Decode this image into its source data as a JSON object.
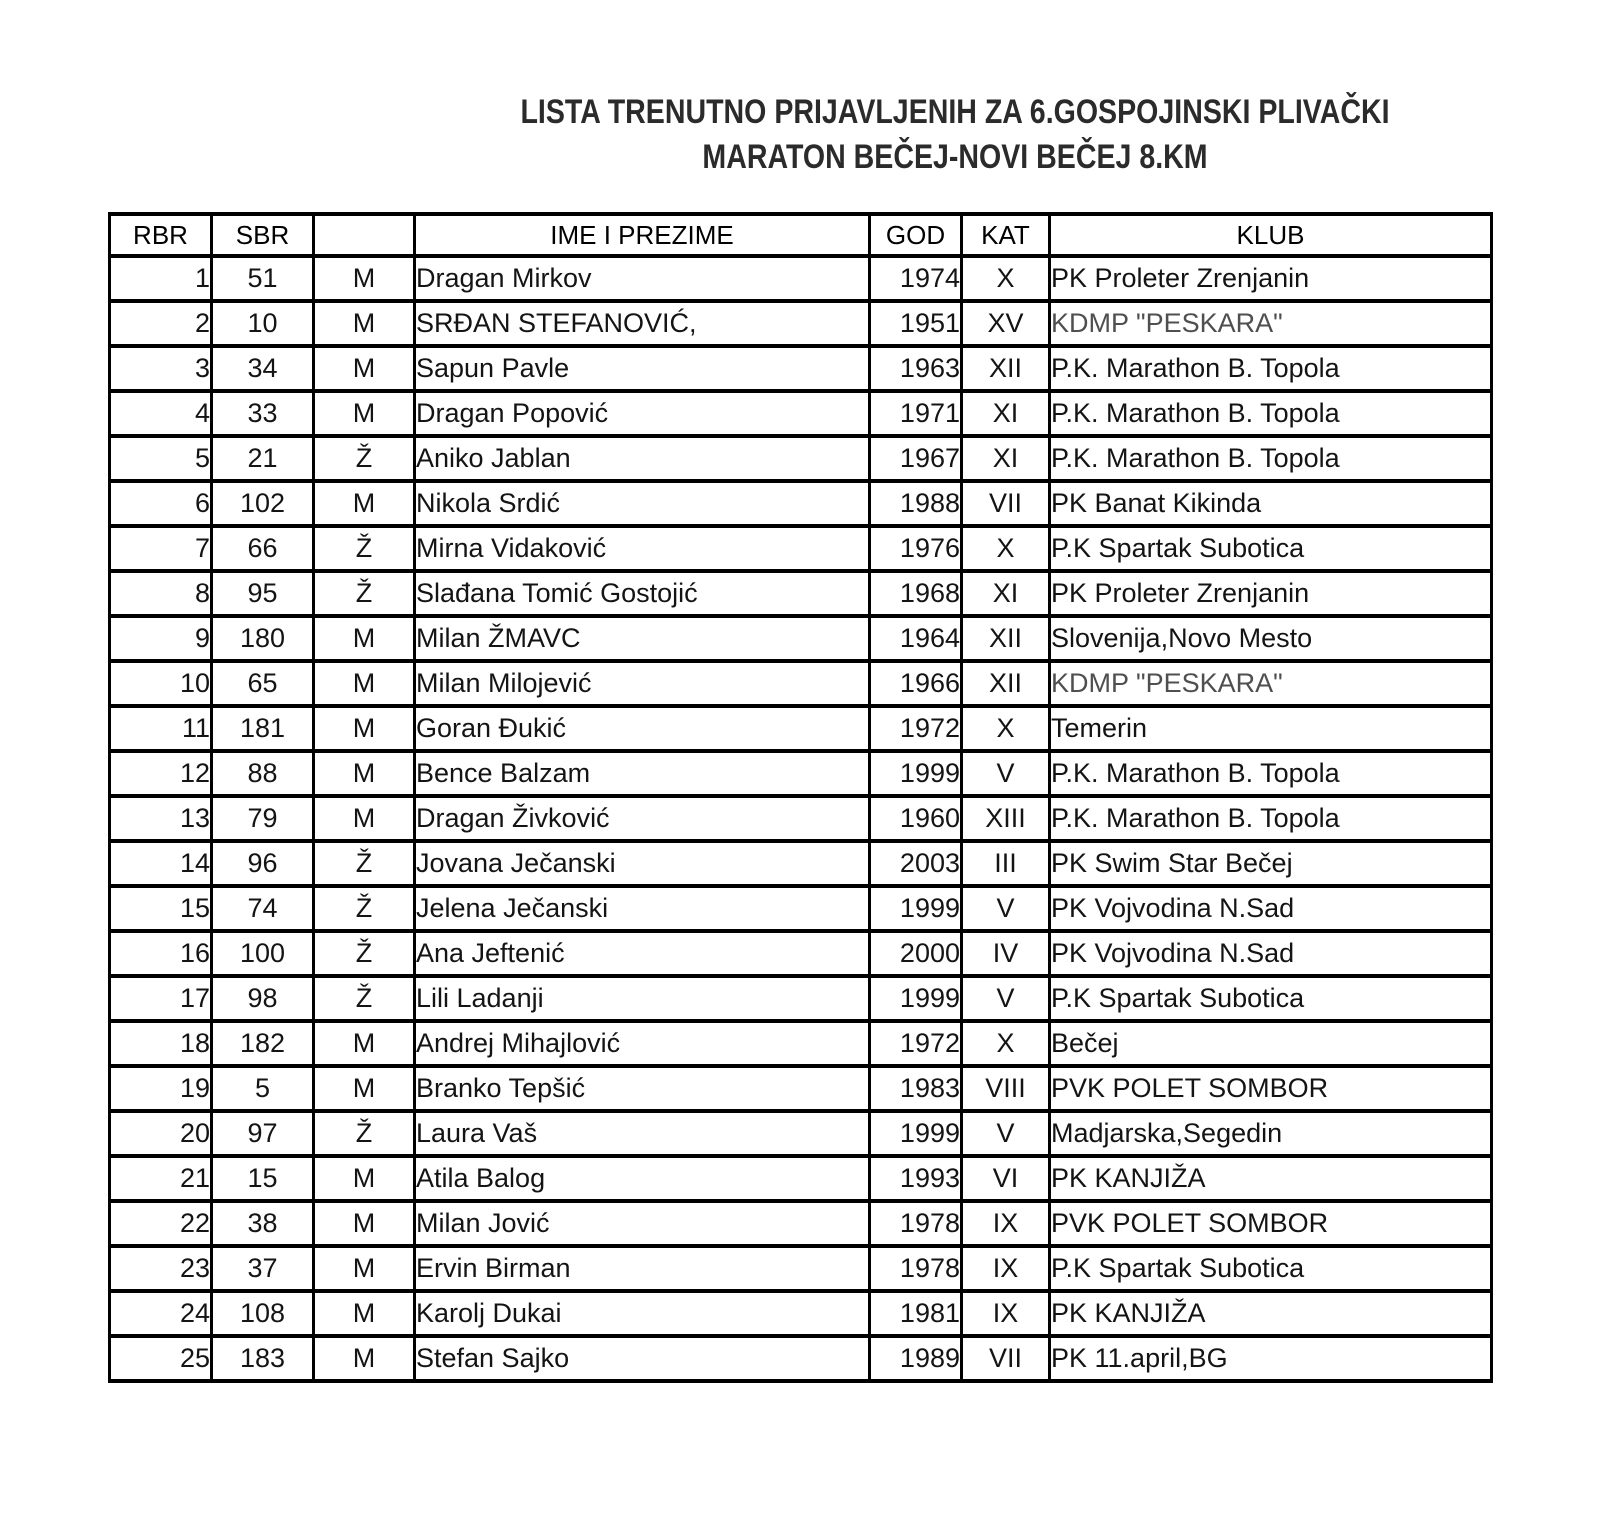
{
  "title": {
    "line1": "LISTA TRENUTNO PRIJAVLJENIH ZA 6.GOSPOJINSKI PLIVAČKI",
    "line2": "MARATON BEČEJ-NOVI BEČEJ 8.KM"
  },
  "colors": {
    "border": "#000000",
    "header_text": "#000000",
    "number_text": "#141414",
    "name_text": "#4f4f4f",
    "club_text": "#1f1f1f",
    "club_muted_text": "#4f4f4f",
    "background": "#ffffff"
  },
  "table": {
    "headers": [
      "RBR",
      "SBR",
      "",
      "IME I PREZIME",
      "GOD",
      "KAT",
      "KLUB"
    ],
    "rows": [
      {
        "rbr": "1",
        "sbr": "51",
        "pol": "M",
        "name": "Dragan Mirkov",
        "god": "1974",
        "kat": "X",
        "klub": "PK Proleter Zrenjanin",
        "muted": false
      },
      {
        "rbr": "2",
        "sbr": "10",
        "pol": "M",
        "name": "SRĐAN STEFANOVIĆ,",
        "god": "1951",
        "kat": "XV",
        "klub": "KDMP \"PESKARA\"",
        "muted": true
      },
      {
        "rbr": "3",
        "sbr": "34",
        "pol": "M",
        "name": "Sapun Pavle",
        "god": "1963",
        "kat": "XII",
        "klub": "P.K. Marathon B. Topola",
        "muted": false
      },
      {
        "rbr": "4",
        "sbr": "33",
        "pol": "M",
        "name": "Dragan Popović",
        "god": "1971",
        "kat": "XI",
        "klub": "P.K. Marathon B. Topola",
        "muted": false
      },
      {
        "rbr": "5",
        "sbr": "21",
        "pol": "Ž",
        "name": "Aniko Jablan",
        "god": "1967",
        "kat": "XI",
        "klub": "P.K. Marathon B. Topola",
        "muted": false
      },
      {
        "rbr": "6",
        "sbr": "102",
        "pol": "M",
        "name": "Nikola Srdić",
        "god": "1988",
        "kat": "VII",
        "klub": "PK Banat Kikinda",
        "muted": false
      },
      {
        "rbr": "7",
        "sbr": "66",
        "pol": "Ž",
        "name": "Mirna Vidaković",
        "god": "1976",
        "kat": "X",
        "klub": "P.K Spartak Subotica",
        "muted": false
      },
      {
        "rbr": "8",
        "sbr": "95",
        "pol": "Ž",
        "name": "Slađana Tomić Gostojić",
        "god": "1968",
        "kat": "XI",
        "klub": "PK Proleter Zrenjanin",
        "muted": false
      },
      {
        "rbr": "9",
        "sbr": "180",
        "pol": "M",
        "name": "Milan ŽMAVC",
        "god": "1964",
        "kat": "XII",
        "klub": "Slovenija,Novo Mesto",
        "muted": false
      },
      {
        "rbr": "10",
        "sbr": "65",
        "pol": "M",
        "name": "Milan Milojević",
        "god": "1966",
        "kat": "XII",
        "klub": "KDMP \"PESKARA\"",
        "muted": true
      },
      {
        "rbr": "11",
        "sbr": "181",
        "pol": "M",
        "name": "Goran Đukić",
        "god": "1972",
        "kat": "X",
        "klub": "Temerin",
        "muted": false
      },
      {
        "rbr": "12",
        "sbr": "88",
        "pol": "M",
        "name": "Bence Balzam",
        "god": "1999",
        "kat": "V",
        "klub": "P.K. Marathon B. Topola",
        "muted": false
      },
      {
        "rbr": "13",
        "sbr": "79",
        "pol": "M",
        "name": "Dragan Živković",
        "god": "1960",
        "kat": "XIII",
        "klub": "P.K. Marathon B. Topola",
        "muted": false
      },
      {
        "rbr": "14",
        "sbr": "96",
        "pol": "Ž",
        "name": "Jovana Ječanski",
        "god": "2003",
        "kat": "III",
        "klub": "PK Swim Star Bečej",
        "muted": false
      },
      {
        "rbr": "15",
        "sbr": "74",
        "pol": "Ž",
        "name": "Jelena Ječanski",
        "god": "1999",
        "kat": "V",
        "klub": "PK Vojvodina N.Sad",
        "muted": false
      },
      {
        "rbr": "16",
        "sbr": "100",
        "pol": "Ž",
        "name": "Ana Jeftenić",
        "god": "2000",
        "kat": "IV",
        "klub": "PK Vojvodina N.Sad",
        "muted": false
      },
      {
        "rbr": "17",
        "sbr": "98",
        "pol": "Ž",
        "name": "Lili Ladanji",
        "god": "1999",
        "kat": "V",
        "klub": "P.K Spartak Subotica",
        "muted": false
      },
      {
        "rbr": "18",
        "sbr": "182",
        "pol": "M",
        "name": "Andrej Mihajlović",
        "god": "1972",
        "kat": "X",
        "klub": "Bečej",
        "muted": false
      },
      {
        "rbr": "19",
        "sbr": "5",
        "pol": "M",
        "name": "Branko Tepšić",
        "god": "1983",
        "kat": "VIII",
        "klub": "PVK POLET SOMBOR",
        "muted": false
      },
      {
        "rbr": "20",
        "sbr": "97",
        "pol": "Ž",
        "name": "Laura Vaš",
        "god": "1999",
        "kat": "V",
        "klub": "Madjarska,Segedin",
        "muted": false
      },
      {
        "rbr": "21",
        "sbr": "15",
        "pol": "M",
        "name": "Atila Balog",
        "god": "1993",
        "kat": "VI",
        "klub": "PK KANJIŽA",
        "muted": false
      },
      {
        "rbr": "22",
        "sbr": "38",
        "pol": "M",
        "name": "Milan Jović",
        "god": "1978",
        "kat": "IX",
        "klub": "PVK POLET SOMBOR",
        "muted": false
      },
      {
        "rbr": "23",
        "sbr": "37",
        "pol": "M",
        "name": "Ervin Birman",
        "god": "1978",
        "kat": "IX",
        "klub": "P.K Spartak Subotica",
        "muted": false
      },
      {
        "rbr": "24",
        "sbr": "108",
        "pol": "M",
        "name": "Karolj Dukai",
        "god": "1981",
        "kat": "IX",
        "klub": "PK KANJIŽA",
        "muted": false
      },
      {
        "rbr": "25",
        "sbr": "183",
        "pol": "M",
        "name": "Stefan Sajko",
        "god": "1989",
        "kat": "VII",
        "klub": "PK 11.april,BG",
        "muted": false
      }
    ]
  }
}
